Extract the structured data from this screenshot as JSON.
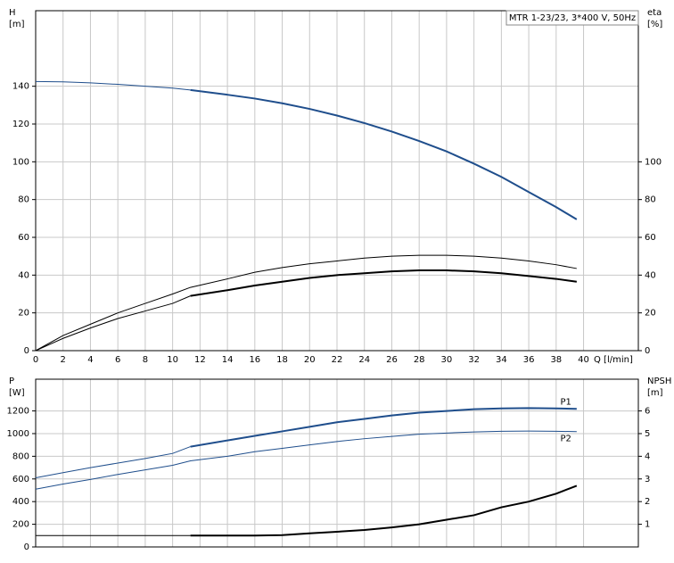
{
  "chart_data": [
    {
      "type": "line",
      "title": "MTR 1-23/23, 3*400 V, 50Hz",
      "ylabel": [
        "H",
        "[m]"
      ],
      "y2label": [
        "eta",
        "[%]"
      ],
      "xlabel": "Q [l/min]",
      "x": [
        0,
        2,
        4,
        6,
        8,
        10,
        11.3,
        14,
        16,
        18,
        20,
        22,
        24,
        26,
        28,
        30,
        32,
        34,
        36,
        38,
        39.5
      ],
      "xlim": [
        0,
        44
      ],
      "xticks": [
        0,
        2,
        4,
        6,
        8,
        10,
        12,
        14,
        16,
        18,
        20,
        22,
        24,
        26,
        28,
        30,
        32,
        34,
        36,
        38,
        40
      ],
      "ylim": [
        0,
        180
      ],
      "yticks": [
        0,
        20,
        40,
        60,
        80,
        100,
        120,
        140
      ],
      "y2lim": [
        0,
        180
      ],
      "y2ticks": [
        0,
        20,
        40,
        60,
        80,
        100
      ],
      "grid": true,
      "series": [
        {
          "color": "#1f4e8c",
          "width": 1,
          "values": [
            142.5,
            142.3,
            141.8,
            141,
            140,
            139,
            138,
            null,
            null,
            null,
            null,
            null,
            null,
            null,
            null,
            null,
            null,
            null,
            null,
            null,
            null
          ]
        },
        {
          "color": "#1f4e8c",
          "width": 2,
          "values": [
            null,
            null,
            null,
            null,
            null,
            null,
            138,
            135.5,
            133.5,
            131,
            128,
            124.5,
            120.5,
            116,
            111,
            105.5,
            99,
            92,
            84,
            76,
            69.5
          ]
        },
        {
          "color": "#000000",
          "width": 1,
          "axis": "y2",
          "values": [
            0,
            8,
            14,
            20,
            25,
            30,
            33.5,
            38,
            41.5,
            44,
            46,
            47.5,
            49,
            50,
            50.5,
            50.5,
            50,
            49,
            47.5,
            45.5,
            43.5
          ]
        },
        {
          "color": "#000000",
          "width": 1,
          "axis": "y2",
          "values": [
            0,
            6.5,
            12,
            17,
            21,
            25,
            29,
            null,
            null,
            null,
            null,
            null,
            null,
            null,
            null,
            null,
            null,
            null,
            null,
            null,
            null
          ]
        },
        {
          "color": "#000000",
          "width": 2,
          "axis": "y2",
          "values": [
            null,
            null,
            null,
            null,
            null,
            null,
            29,
            32,
            34.5,
            36.5,
            38.5,
            40,
            41,
            42,
            42.5,
            42.5,
            42,
            41,
            39.5,
            38,
            36.5
          ]
        }
      ]
    },
    {
      "type": "line",
      "ylabel": [
        "P",
        "[W]"
      ],
      "y2label": [
        "NPSH",
        "[m]"
      ],
      "x": [
        0,
        2,
        4,
        6,
        8,
        10,
        11.3,
        14,
        16,
        18,
        20,
        22,
        24,
        26,
        28,
        30,
        32,
        34,
        36,
        38,
        39.5
      ],
      "xlim": [
        0,
        44
      ],
      "ylim": [
        0,
        1480
      ],
      "yticks": [
        0,
        200,
        400,
        600,
        800,
        1000,
        1200
      ],
      "y2lim": [
        0,
        7.4
      ],
      "y2ticks": [
        1,
        2,
        3,
        4,
        5,
        6
      ],
      "grid": true,
      "series": [
        {
          "color": "#1f4e8c",
          "width": 1,
          "values": [
            610,
            655,
            700,
            740,
            780,
            825,
            885,
            null,
            null,
            null,
            null,
            null,
            null,
            null,
            null,
            null,
            null,
            null,
            null,
            null,
            null
          ]
        },
        {
          "name": "P1",
          "color": "#1f4e8c",
          "width": 2,
          "values": [
            null,
            null,
            null,
            null,
            null,
            null,
            885,
            940,
            980,
            1020,
            1060,
            1100,
            1130,
            1160,
            1185,
            1200,
            1215,
            1222,
            1225,
            1222,
            1218
          ]
        },
        {
          "name": "P2",
          "color": "#1f4e8c",
          "width": 1,
          "values": [
            510,
            555,
            595,
            640,
            680,
            720,
            760,
            800,
            840,
            870,
            900,
            930,
            955,
            975,
            995,
            1005,
            1015,
            1020,
            1022,
            1020,
            1018
          ]
        },
        {
          "color": "#000000",
          "width": 1,
          "axis": "y2",
          "values": [
            0.5,
            0.5,
            0.5,
            0.5,
            0.5,
            0.5,
            0.5,
            null,
            null,
            null,
            null,
            null,
            null,
            null,
            null,
            null,
            null,
            null,
            null,
            null,
            null
          ]
        },
        {
          "color": "#000000",
          "width": 2,
          "axis": "y2",
          "values": [
            null,
            null,
            null,
            null,
            null,
            null,
            0.5,
            0.5,
            0.5,
            0.52,
            0.6,
            0.67,
            0.75,
            0.86,
            1.0,
            1.2,
            1.4,
            1.75,
            2.0,
            2.35,
            2.7
          ]
        }
      ]
    }
  ]
}
